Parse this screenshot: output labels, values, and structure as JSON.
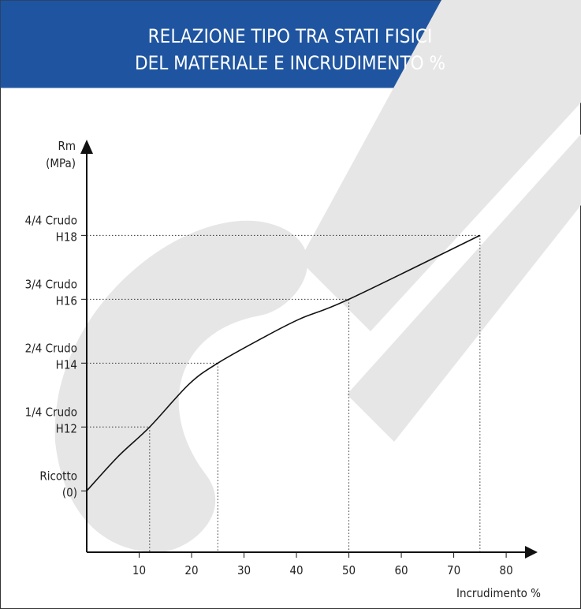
{
  "chart_data": {
    "type": "line",
    "title": [
      "RELAZIONE TIPO TRA STATI FISICI",
      "DEL MATERIALE E INCRUDIMENTO %"
    ],
    "x_label": "Incrudimento %",
    "y_label": [
      "Rm",
      "(MPa)"
    ],
    "x": [
      0,
      6,
      12,
      19.5,
      25,
      33,
      40.6,
      50,
      75
    ],
    "series": [
      {
        "color": "#111111",
        "values": [
          0,
          0.54,
          1,
          1.67,
          2,
          2.37,
          2.69,
          3,
          4
        ]
      }
    ],
    "xlim": [
      0,
      86
    ],
    "xticks": [
      10,
      20,
      30,
      40,
      50,
      60,
      70,
      80
    ],
    "ylim": [
      -0.96,
      5.4
    ],
    "yticks": [
      {
        "value": 0,
        "label": [
          "Ricotto",
          "(0)"
        ]
      },
      {
        "value": 1,
        "label": [
          "1/4 Crudo",
          "H12"
        ]
      },
      {
        "value": 2,
        "label": [
          "2/4 Crudo",
          "H14"
        ]
      },
      {
        "value": 3,
        "label": [
          "3/4 Crudo",
          "H16"
        ]
      },
      {
        "value": 4,
        "label": [
          "4/4 Crudo",
          "H18"
        ]
      }
    ],
    "guide_lines": true,
    "header_color": "#1f55a0"
  }
}
